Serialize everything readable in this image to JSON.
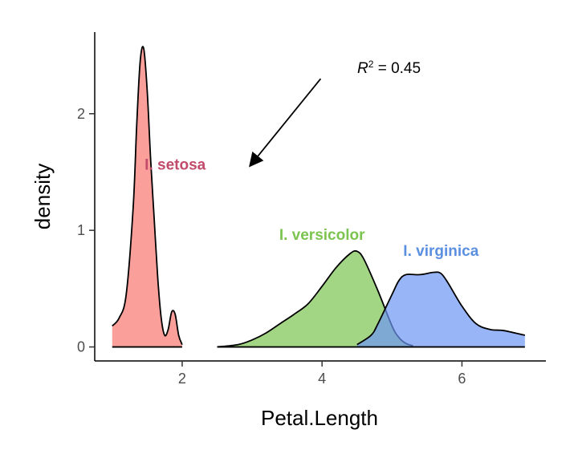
{
  "chart_data": {
    "type": "area",
    "xlabel": "Petal.Length",
    "ylabel": "density",
    "xlim": [
      0.75,
      7.2
    ],
    "ylim": [
      -0.12,
      2.7
    ],
    "x_ticks": [
      2,
      4,
      6
    ],
    "y_ticks": [
      0,
      1,
      2
    ],
    "grid": false,
    "legend": "none",
    "series": [
      {
        "name": "I. setosa",
        "color": "#F8766D",
        "label_color": "#C24A6A",
        "x": [
          1.0,
          1.1,
          1.2,
          1.3,
          1.35,
          1.4,
          1.45,
          1.5,
          1.55,
          1.6,
          1.65,
          1.7,
          1.75,
          1.8,
          1.85,
          1.9,
          1.95,
          2.0
        ],
        "y": [
          0.18,
          0.25,
          0.45,
          1.2,
          1.9,
          2.45,
          2.56,
          2.2,
          1.6,
          1.1,
          0.6,
          0.25,
          0.1,
          0.15,
          0.3,
          0.28,
          0.1,
          0.02
        ]
      },
      {
        "name": "I. versicolor",
        "color": "#7CC450",
        "label_color": "#7CC450",
        "x": [
          2.5,
          2.8,
          3.0,
          3.2,
          3.4,
          3.6,
          3.8,
          4.0,
          4.2,
          4.4,
          4.5,
          4.6,
          4.8,
          5.0,
          5.1,
          5.2,
          5.3
        ],
        "y": [
          0.0,
          0.02,
          0.06,
          0.12,
          0.2,
          0.28,
          0.37,
          0.52,
          0.68,
          0.8,
          0.82,
          0.75,
          0.48,
          0.18,
          0.08,
          0.03,
          0.01
        ]
      },
      {
        "name": "I. virginica",
        "color": "#6C96F3",
        "label_color": "#5B8FE0",
        "x": [
          4.5,
          4.7,
          4.8,
          5.0,
          5.1,
          5.2,
          5.4,
          5.6,
          5.7,
          5.8,
          6.0,
          6.2,
          6.4,
          6.6,
          6.9
        ],
        "y": [
          0.02,
          0.1,
          0.2,
          0.45,
          0.57,
          0.62,
          0.62,
          0.64,
          0.63,
          0.55,
          0.35,
          0.2,
          0.15,
          0.14,
          0.1
        ]
      }
    ],
    "annotation": {
      "text_prefix": "R",
      "text_sup": "2",
      "text_suffix": " = 0.45",
      "arrow_from": [
        3.98,
        2.3
      ],
      "arrow_to": [
        2.98,
        1.56
      ]
    }
  }
}
